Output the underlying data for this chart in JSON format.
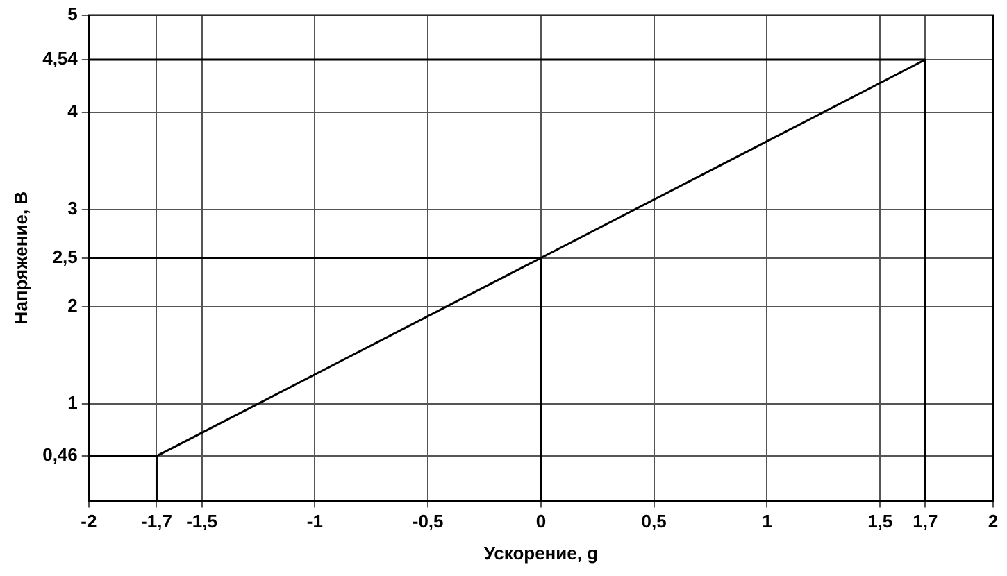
{
  "chart_data": {
    "type": "line",
    "xlabel": "Ускорение, g",
    "ylabel": "Напряжение, В",
    "xlim": [
      -2,
      2
    ],
    "ylim": [
      0,
      5
    ],
    "xticks": [
      -2,
      {
        "value": -1.7,
        "label": "-1,7"
      },
      {
        "value": -1.5,
        "label": "-1,5"
      },
      -1,
      {
        "value": -0.5,
        "label": "-0,5"
      },
      0,
      {
        "value": 0.5,
        "label": "0,5"
      },
      1,
      {
        "value": 1.5,
        "label": "1,5"
      },
      {
        "value": 1.7,
        "label": "1,7"
      },
      2
    ],
    "yticks": [
      {
        "value": 0.46,
        "label": "0,46"
      },
      1,
      2,
      {
        "value": 2.5,
        "label": "2,5"
      },
      3,
      4,
      {
        "value": 4.54,
        "label": "4,54"
      },
      5
    ],
    "grid": true,
    "legend": false,
    "marker": "none",
    "line_style": "solid",
    "series": [
      {
        "color": "#000000",
        "x": [
          -1.7,
          1.7
        ],
        "values": [
          0.46,
          4.54
        ]
      },
      {
        "color": "#000000",
        "x": [
          -2,
          1.7,
          1.7
        ],
        "values": [
          4.54,
          4.54,
          0
        ]
      },
      {
        "color": "#000000",
        "x": [
          -2,
          0,
          0
        ],
        "values": [
          2.5,
          2.5,
          0
        ]
      },
      {
        "color": "#000000",
        "x": [
          -2,
          -1.7,
          -1.7
        ],
        "values": [
          0.46,
          0.46,
          0
        ]
      }
    ]
  }
}
